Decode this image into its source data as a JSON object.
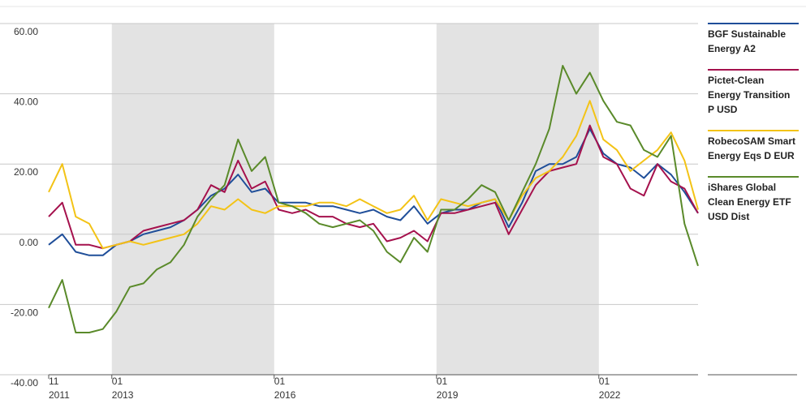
{
  "chart_data": {
    "type": "line",
    "x": [
      "2011-11",
      "2012-02",
      "2012-05",
      "2012-08",
      "2012-11",
      "2013-02",
      "2013-05",
      "2013-08",
      "2013-11",
      "2014-02",
      "2014-05",
      "2014-08",
      "2014-11",
      "2015-02",
      "2015-05",
      "2015-08",
      "2015-11",
      "2016-02",
      "2016-05",
      "2016-08",
      "2016-11",
      "2017-02",
      "2017-05",
      "2017-08",
      "2017-11",
      "2018-02",
      "2018-05",
      "2018-08",
      "2018-11",
      "2019-02",
      "2019-05",
      "2019-08",
      "2019-11",
      "2020-02",
      "2020-05",
      "2020-08",
      "2020-11",
      "2021-02",
      "2021-05",
      "2021-08",
      "2021-11",
      "2022-02",
      "2022-05",
      "2022-08",
      "2022-11",
      "2023-02",
      "2023-05",
      "2023-08",
      "2023-11"
    ],
    "xlim": [
      "2011-11",
      "2023-11"
    ],
    "xticks": [
      {
        "value": "2011-11",
        "label": [
          "11",
          "2011"
        ]
      },
      {
        "value": "2013-01",
        "label": [
          "01",
          "2013"
        ]
      },
      {
        "value": "2016-01",
        "label": [
          "01",
          "2016"
        ]
      },
      {
        "value": "2019-01",
        "label": [
          "01",
          "2019"
        ]
      },
      {
        "value": "2022-01",
        "label": [
          "01",
          "2022"
        ]
      }
    ],
    "shaded_periods": [
      [
        "2013-01",
        "2016-01"
      ],
      [
        "2019-01",
        "2022-01"
      ]
    ],
    "ylim": [
      -40,
      60
    ],
    "yticks": [
      {
        "value": -40,
        "label": "-40.00"
      },
      {
        "value": -20,
        "label": "-20.00"
      },
      {
        "value": 0,
        "label": "0.00"
      },
      {
        "value": 20,
        "label": "20.00"
      },
      {
        "value": 40,
        "label": "40.00"
      },
      {
        "value": 60,
        "label": "60.00"
      }
    ],
    "grid": true,
    "series": [
      {
        "name": "BGF Sustainable Energy A2",
        "color": "#1f4e99",
        "values": [
          -3,
          0,
          -5,
          -6,
          -6,
          -3,
          -2,
          0,
          1,
          2,
          4,
          7,
          11,
          13,
          17,
          12,
          13,
          9,
          9,
          9,
          8,
          8,
          7,
          6,
          7,
          5,
          4,
          8,
          3,
          6,
          7,
          7,
          9,
          10,
          2,
          9,
          18,
          20,
          20,
          22,
          30,
          23,
          20,
          19,
          16,
          20,
          17,
          12,
          6
        ]
      },
      {
        "name": "Pictet-Clean Energy Transition P USD",
        "color": "#a5114d",
        "values": [
          5,
          9,
          -3,
          -3,
          -4,
          -3,
          -2,
          1,
          2,
          3,
          4,
          7,
          14,
          12,
          21,
          13,
          15,
          7,
          6,
          7,
          5,
          5,
          3,
          2,
          3,
          -2,
          -1,
          1,
          -2,
          6,
          6,
          7,
          8,
          9,
          0,
          7,
          14,
          18,
          19,
          20,
          31,
          22,
          20,
          13,
          11,
          20,
          15,
          13,
          6
        ]
      },
      {
        "name": "RobecoSAM Smart Energy Eqs D EUR",
        "color": "#f3c316",
        "values": [
          12,
          20,
          5,
          3,
          -4,
          -3,
          -2,
          -3,
          -2,
          -1,
          0,
          3,
          8,
          7,
          10,
          7,
          6,
          8,
          8,
          8,
          9,
          9,
          8,
          10,
          8,
          6,
          7,
          11,
          4,
          10,
          9,
          8,
          9,
          10,
          4,
          11,
          16,
          18,
          22,
          28,
          38,
          27,
          24,
          18,
          21,
          24,
          29,
          21,
          7
        ]
      },
      {
        "name": "iShares Global Clean Energy ETF USD Dist",
        "color": "#5a8a2a",
        "values": [
          -21,
          -13,
          -28,
          -28,
          -27,
          -22,
          -15,
          -14,
          -10,
          -8,
          -3,
          5,
          10,
          14,
          27,
          18,
          22,
          9,
          8,
          6,
          3,
          2,
          3,
          4,
          1,
          -5,
          -8,
          -1,
          -5,
          7,
          7,
          10,
          14,
          12,
          4,
          12,
          20,
          30,
          48,
          40,
          46,
          38,
          32,
          31,
          24,
          22,
          28,
          3,
          -9
        ]
      }
    ]
  }
}
